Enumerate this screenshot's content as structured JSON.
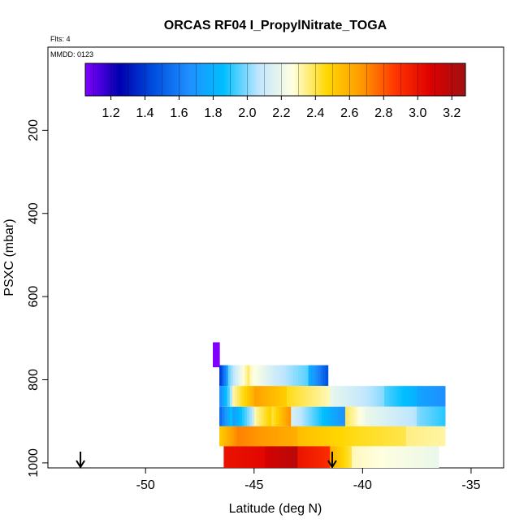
{
  "chart_data": {
    "type": "heatmap",
    "title": "ORCAS RF04 I_PropylNitrate_TOGA",
    "flights_label": "Flts: 4",
    "date_label": "MMDD: 0123",
    "xlabel": "Latitude (deg N)",
    "ylabel": "PSXC (mbar)",
    "xlim": [
      -54.5,
      -33.5
    ],
    "ylim": [
      1012,
      0
    ],
    "x_ticks": [
      -50,
      -45,
      -40,
      -35
    ],
    "x_tick_labels": [
      "-50",
      "-45",
      "-40",
      "-35"
    ],
    "y_ticks": [
      200,
      400,
      600,
      800,
      1000
    ],
    "y_tick_labels": [
      "200",
      "400",
      "600",
      "800",
      "1000"
    ],
    "colorbar": {
      "min": 1.05,
      "max": 3.28,
      "ticks": [
        1.2,
        1.4,
        1.6,
        1.8,
        2.0,
        2.2,
        2.4,
        2.6,
        2.8,
        3.0,
        3.2
      ],
      "tick_labels": [
        "1.2",
        "1.4",
        "1.6",
        "1.8",
        "2.0",
        "2.2",
        "2.4",
        "2.6",
        "2.8",
        "3.0",
        "3.2"
      ],
      "colors": [
        "#8000ff",
        "#0000b0",
        "#0050e0",
        "#1e90ff",
        "#00bfff",
        "#bfe6ff",
        "#ffffe0",
        "#ffd700",
        "#ff9900",
        "#ff3300",
        "#dd0000",
        "#a01010"
      ]
    },
    "arrows": [
      {
        "lat": -53.0,
        "label": "arrow"
      },
      {
        "lat": -41.4,
        "label": "arrow"
      }
    ],
    "bands": [
      {
        "p_top": 710,
        "p_bottom": 770,
        "segments": [
          {
            "lat": [
              -46.9,
              -46.6
            ],
            "v": [
              1.05,
              1.05
            ]
          }
        ]
      },
      {
        "p_top": 765,
        "p_bottom": 815,
        "segments": [
          {
            "lat": [
              -46.6,
              -46.2
            ],
            "v": [
              1.35,
              1.75
            ]
          },
          {
            "lat": [
              -46.2,
              -45.2
            ],
            "v": [
              1.95,
              2.4
            ]
          },
          {
            "lat": [
              -45.2,
              -44.0
            ],
            "v": [
              2.3,
              2.1
            ]
          },
          {
            "lat": [
              -44.0,
              -42.5
            ],
            "v": [
              2.1,
              1.95
            ]
          },
          {
            "lat": [
              -42.5,
              -41.6
            ],
            "v": [
              1.8,
              1.45
            ]
          }
        ]
      },
      {
        "p_top": 815,
        "p_bottom": 865,
        "segments": [
          {
            "lat": [
              -46.6,
              -46.0
            ],
            "v": [
              1.6,
              2.1
            ]
          },
          {
            "lat": [
              -46.0,
              -45.0
            ],
            "v": [
              2.3,
              2.6
            ]
          },
          {
            "lat": [
              -45.0,
              -43.5
            ],
            "v": [
              2.65,
              2.5
            ]
          },
          {
            "lat": [
              -43.5,
              -41.5
            ],
            "v": [
              2.45,
              2.3
            ]
          },
          {
            "lat": [
              -41.5,
              -39.0
            ],
            "v": [
              2.2,
              2.0
            ]
          },
          {
            "lat": [
              -39.0,
              -37.5
            ],
            "v": [
              1.95,
              1.8
            ]
          },
          {
            "lat": [
              -37.5,
              -36.2
            ],
            "v": [
              1.75,
              1.65
            ]
          }
        ]
      },
      {
        "p_top": 865,
        "p_bottom": 912,
        "segments": [
          {
            "lat": [
              -46.6,
              -46.0
            ],
            "v": [
              1.5,
              1.9
            ]
          },
          {
            "lat": [
              -46.0,
              -45.0
            ],
            "v": [
              1.7,
              2.1
            ]
          },
          {
            "lat": [
              -45.0,
              -44.2
            ],
            "v": [
              2.3,
              2.5
            ]
          },
          {
            "lat": [
              -44.2,
              -43.3
            ],
            "v": [
              2.4,
              2.7
            ]
          },
          {
            "lat": [
              -43.3,
              -42.0
            ],
            "v": [
              2.15,
              1.9
            ]
          },
          {
            "lat": [
              -42.0,
              -40.8
            ],
            "v": [
              1.9,
              1.65
            ]
          },
          {
            "lat": [
              -40.8,
              -39.8
            ],
            "v": [
              2.4,
              2.2
            ]
          },
          {
            "lat": [
              -39.8,
              -37.5
            ],
            "v": [
              2.2,
              2.05
            ]
          },
          {
            "lat": [
              -37.5,
              -36.2
            ],
            "v": [
              2.0,
              1.9
            ]
          }
        ]
      },
      {
        "p_top": 912,
        "p_bottom": 960,
        "segments": [
          {
            "lat": [
              -46.6,
              -45.8
            ],
            "v": [
              2.5,
              2.7
            ]
          },
          {
            "lat": [
              -45.8,
              -43.0
            ],
            "v": [
              2.72,
              2.6
            ]
          },
          {
            "lat": [
              -43.0,
              -40.5
            ],
            "v": [
              2.55,
              2.45
            ]
          },
          {
            "lat": [
              -40.5,
              -38.0
            ],
            "v": [
              2.45,
              2.4
            ]
          },
          {
            "lat": [
              -38.0,
              -36.2
            ],
            "v": [
              2.35,
              2.32
            ]
          }
        ]
      },
      {
        "p_top": 960,
        "p_bottom": 1012,
        "segments": [
          {
            "lat": [
              -46.4,
              -44.5
            ],
            "v": [
              3.0,
              3.05
            ]
          },
          {
            "lat": [
              -44.5,
              -43.0
            ],
            "v": [
              3.1,
              3.2
            ]
          },
          {
            "lat": [
              -43.0,
              -41.5
            ],
            "v": [
              3.0,
              2.9
            ]
          },
          {
            "lat": [
              -41.5,
              -40.5
            ],
            "v": [
              2.6,
              2.4
            ]
          },
          {
            "lat": [
              -40.5,
              -36.5
            ],
            "v": [
              2.3,
              2.2
            ]
          }
        ]
      }
    ]
  }
}
